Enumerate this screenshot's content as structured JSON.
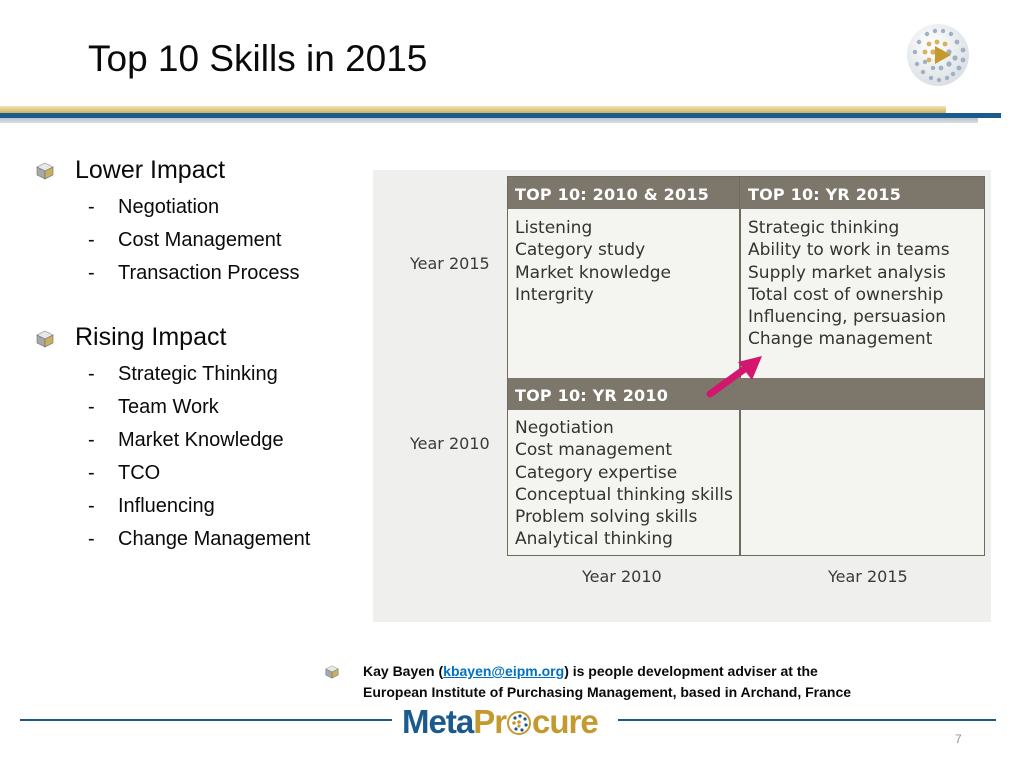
{
  "slide": {
    "title": "Top 10 Skills in 2015",
    "page_number": "7"
  },
  "left_panel": {
    "sections": [
      {
        "heading": "Lower Impact",
        "items": [
          "Negotiation",
          "Cost Management",
          "Transaction Process"
        ]
      },
      {
        "heading": "Rising Impact",
        "items": [
          "Strategic Thinking",
          "Team Work",
          "Market Knowledge",
          "TCO",
          "Influencing",
          "Change Management"
        ]
      }
    ],
    "dash": "-"
  },
  "figure": {
    "header_2010_2015": "TOP 10: 2010 & 2015",
    "header_yr_2015": "TOP 10: YR 2015",
    "header_yr_2010": "TOP 10: YR 2010",
    "row_year_2015": "Year 2015",
    "row_year_2010": "Year 2010",
    "col_year_2010": "Year 2010",
    "col_year_2015": "Year 2015",
    "list_2010_2015": [
      "Listening",
      "Category study",
      "Market knowledge",
      "Intergrity"
    ],
    "list_yr_2015": [
      "Strategic thinking",
      "Ability to work in teams",
      "Supply market analysis",
      "Total cost of ownership",
      "Influencing, persuasion",
      "Change management"
    ],
    "list_yr_2010": [
      "Negotiation",
      "Cost management",
      "Category expertise",
      "Conceptual thinking skills",
      "Problem solving skills",
      "Analytical thinking"
    ],
    "arrow_color": "#d4166f"
  },
  "footnote": {
    "prefix": "Kay Bayen (",
    "email": "kbayen@eipm.org",
    "suffix_line1": ") is people development adviser at the",
    "line2": "European Institute of Purchasing Management, based in Archand, France"
  },
  "logo": {
    "part1": "Meta",
    "part2": "Pr",
    "part3": "cure"
  },
  "colors": {
    "brand_blue": "#1b5a8c",
    "brand_gold": "#c49a2f",
    "header_bar": "#7d766a"
  }
}
